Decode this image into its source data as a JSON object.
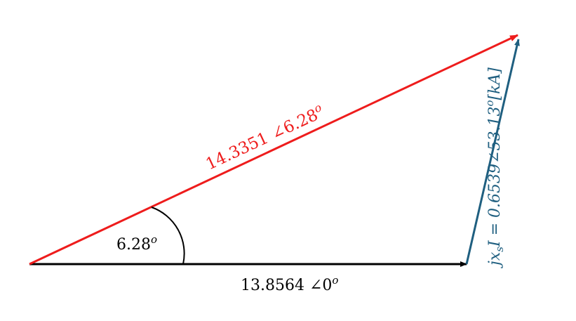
{
  "colors": {
    "background": "#ffffff",
    "base_vector": "#000000",
    "resultant_vector": "#ee1c1c",
    "jxI_vector": "#1f5f80"
  },
  "vectors": {
    "base": {
      "magnitude": "13.8564",
      "angle": "0"
    },
    "resultant": {
      "magnitude": "14.3351",
      "angle": "6.28"
    },
    "jxI": {
      "prefix": "jx",
      "subscript": "s",
      "suffix": "I =",
      "magnitude": "0.6539",
      "angle": "53.13",
      "unit": "[kA]"
    }
  },
  "angle_marker": {
    "value": "6.28",
    "superscript": "o"
  },
  "symbols": {
    "angle": "∠",
    "degree": "o"
  }
}
